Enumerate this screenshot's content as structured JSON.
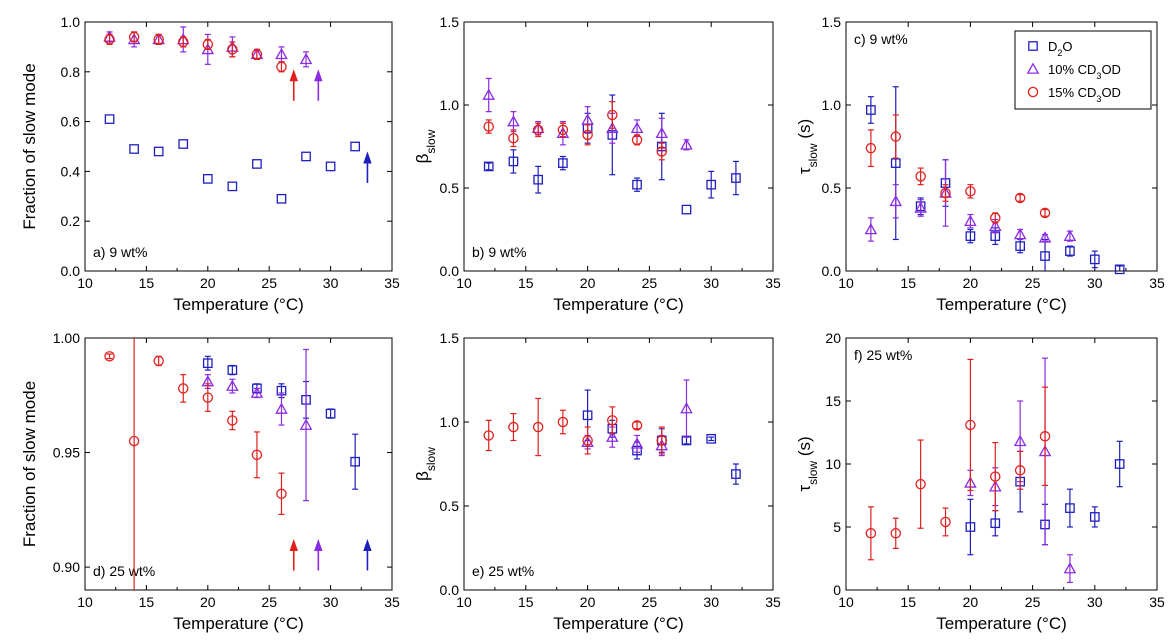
{
  "colors": {
    "D2O": "#1f1fbf",
    "CD3OD_10": "#8b2be2",
    "CD3OD_15": "#e0201d",
    "axis": "#000000"
  },
  "legend": {
    "panel": "c",
    "entries": [
      {
        "key": "D2O",
        "text": "D",
        "sub": "2",
        "tail": "O",
        "marker": "square"
      },
      {
        "key": "CD3OD_10",
        "text": "10% CD",
        "sub": "3",
        "tail": "OD",
        "marker": "triangle"
      },
      {
        "key": "CD3OD_15",
        "text": "15% CD",
        "sub": "3",
        "tail": "OD",
        "marker": "circle"
      }
    ]
  },
  "chart_data": [
    {
      "id": "a",
      "type": "scatter",
      "label": "a) 9 wt%",
      "label_pos": "bottom-left",
      "xlabel": "Temperature (°C)",
      "ylabel": "Fraction of slow mode",
      "xlim": [
        10,
        35
      ],
      "ylim": [
        0.0,
        1.0
      ],
      "xticks": [
        "10",
        "15",
        "20",
        "25",
        "30",
        "35"
      ],
      "yticks": [
        "0.0",
        "0.2",
        "0.4",
        "0.6",
        "0.8",
        "1.0"
      ],
      "series": [
        {
          "key": "D2O",
          "marker": "square",
          "x": [
            12,
            14,
            16,
            18,
            20,
            22,
            24,
            26,
            28,
            30,
            32
          ],
          "y": [
            0.61,
            0.49,
            0.48,
            0.51,
            0.37,
            0.34,
            0.43,
            0.29,
            0.46,
            0.42,
            0.5
          ],
          "err": [
            0,
            0,
            0,
            0,
            0,
            0,
            0,
            0,
            0,
            0,
            0
          ]
        },
        {
          "key": "CD3OD_10",
          "marker": "triangle",
          "x": [
            12,
            14,
            16,
            18,
            20,
            22,
            24,
            26,
            28
          ],
          "y": [
            0.94,
            0.93,
            0.93,
            0.93,
            0.89,
            0.9,
            0.87,
            0.87,
            0.85
          ],
          "err": [
            0.02,
            0.03,
            0.02,
            0.05,
            0.06,
            0.04,
            0.02,
            0.03,
            0.03
          ]
        },
        {
          "key": "CD3OD_15",
          "marker": "circle",
          "x": [
            12,
            14,
            16,
            18,
            20,
            22,
            24,
            26
          ],
          "y": [
            0.93,
            0.94,
            0.93,
            0.92,
            0.91,
            0.89,
            0.87,
            0.82
          ],
          "err": [
            0.02,
            0.02,
            0.02,
            0.02,
            0.02,
            0.03,
            0.02,
            0.02
          ]
        }
      ],
      "arrows": [
        {
          "key": "CD3OD_15",
          "x": 27,
          "y": 0.78
        },
        {
          "key": "CD3OD_10",
          "x": 29,
          "y": 0.78
        },
        {
          "key": "D2O",
          "x": 33,
          "y": 0.45
        }
      ]
    },
    {
      "id": "b",
      "type": "scatter",
      "label": "b) 9 wt%",
      "label_pos": "bottom-left",
      "xlabel": "Temperature (°C)",
      "ylabel": "β",
      "ylabel_sub": "slow",
      "xlim": [
        10,
        35
      ],
      "ylim": [
        0.0,
        1.5
      ],
      "xticks": [
        "10",
        "15",
        "20",
        "25",
        "30",
        "35"
      ],
      "yticks": [
        "0.0",
        "0.5",
        "1.0",
        "1.5"
      ],
      "series": [
        {
          "key": "D2O",
          "marker": "square",
          "x": [
            12,
            14,
            16,
            18,
            20,
            22,
            24,
            26,
            28,
            30,
            32
          ],
          "y": [
            0.63,
            0.66,
            0.55,
            0.65,
            0.86,
            0.82,
            0.52,
            0.75,
            0.37,
            0.52,
            0.56
          ],
          "err": [
            0.02,
            0.07,
            0.08,
            0.04,
            0.09,
            0.24,
            0.04,
            0.2,
            0.0,
            0.08,
            0.1
          ]
        },
        {
          "key": "CD3OD_10",
          "marker": "triangle",
          "x": [
            12,
            14,
            16,
            18,
            20,
            22,
            24,
            26,
            28
          ],
          "y": [
            1.06,
            0.9,
            0.86,
            0.83,
            0.91,
            0.86,
            0.86,
            0.83,
            0.76
          ],
          "err": [
            0.1,
            0.06,
            0.04,
            0.07,
            0.08,
            0.09,
            0.05,
            0.09,
            0.03
          ]
        },
        {
          "key": "CD3OD_15",
          "marker": "circle",
          "x": [
            12,
            14,
            16,
            18,
            20,
            22,
            24,
            26
          ],
          "y": [
            0.87,
            0.8,
            0.85,
            0.85,
            0.82,
            0.94,
            0.79,
            0.72
          ],
          "err": [
            0.04,
            0.05,
            0.04,
            0.04,
            0.06,
            0.08,
            0.03,
            0.05
          ]
        }
      ],
      "arrows": []
    },
    {
      "id": "c",
      "type": "scatter",
      "label": "c) 9 wt%",
      "label_pos": "top-left",
      "xlabel": "Temperature (°C)",
      "ylabel": "τ",
      "ylabel_sub": "slow",
      "ylabel_tail": " (s)",
      "xlim": [
        10,
        35
      ],
      "ylim": [
        0.0,
        1.5
      ],
      "xticks": [
        "10",
        "15",
        "20",
        "25",
        "30",
        "35"
      ],
      "yticks": [
        "0.0",
        "0.5",
        "1.0",
        "1.5"
      ],
      "series": [
        {
          "key": "D2O",
          "marker": "square",
          "x": [
            12,
            14,
            16,
            18,
            20,
            22,
            24,
            26,
            28,
            30,
            32
          ],
          "y": [
            0.97,
            0.65,
            0.39,
            0.53,
            0.21,
            0.21,
            0.15,
            0.09,
            0.12,
            0.07,
            0.01
          ],
          "err": [
            0.08,
            0.46,
            0.05,
            0.14,
            0.04,
            0.05,
            0.04,
            0.1,
            0.03,
            0.05,
            0.02
          ]
        },
        {
          "key": "CD3OD_10",
          "marker": "triangle",
          "x": [
            12,
            14,
            16,
            18,
            20,
            22,
            24,
            26,
            28
          ],
          "y": [
            0.25,
            0.42,
            0.38,
            0.47,
            0.3,
            0.27,
            0.22,
            0.2,
            0.21
          ],
          "err": [
            0.07,
            0.1,
            0.05,
            0.2,
            0.04,
            0.04,
            0.03,
            0.02,
            0.03
          ]
        },
        {
          "key": "CD3OD_15",
          "marker": "circle",
          "x": [
            12,
            14,
            16,
            18,
            20,
            22,
            24,
            26
          ],
          "y": [
            0.74,
            0.81,
            0.57,
            0.47,
            0.48,
            0.32,
            0.44,
            0.35
          ],
          "err": [
            0.11,
            0.13,
            0.05,
            0.05,
            0.04,
            0.03,
            0.02,
            0.02
          ]
        }
      ],
      "arrows": []
    },
    {
      "id": "d",
      "type": "scatter",
      "label": "d) 25 wt%",
      "label_pos": "bottom-left",
      "xlabel": "Temperature (°C)",
      "ylabel": "Fraction of slow mode",
      "xlim": [
        10,
        35
      ],
      "ylim": [
        0.89,
        1.0
      ],
      "xticks": [
        "10",
        "15",
        "20",
        "25",
        "30",
        "35"
      ],
      "yticks": [
        "0.90",
        "0.95",
        "1.00"
      ],
      "series": [
        {
          "key": "D2O",
          "marker": "square",
          "x": [
            20,
            22,
            24,
            26,
            28,
            30,
            32
          ],
          "y": [
            0.989,
            0.986,
            0.978,
            0.977,
            0.973,
            0.967,
            0.946
          ],
          "err": [
            0.003,
            0.002,
            0.002,
            0.003,
            0.008,
            0.002,
            0.012
          ]
        },
        {
          "key": "CD3OD_10",
          "marker": "triangle",
          "x": [
            20,
            22,
            24,
            26,
            28
          ],
          "y": [
            0.981,
            0.979,
            0.976,
            0.969,
            0.962
          ],
          "err": [
            0.003,
            0.003,
            0.002,
            0.007,
            0.033
          ]
        },
        {
          "key": "CD3OD_15",
          "marker": "circle",
          "x": [
            12,
            14,
            16,
            18,
            20,
            22,
            24,
            26
          ],
          "y": [
            0.992,
            0.955,
            0.99,
            0.978,
            0.974,
            0.964,
            0.949,
            0.932
          ],
          "err": [
            0.001,
            0.065,
            0.002,
            0.006,
            0.006,
            0.004,
            0.01,
            0.009
          ]
        }
      ],
      "arrows": [
        {
          "key": "CD3OD_15",
          "x": 27,
          "y": 0.909
        },
        {
          "key": "CD3OD_10",
          "x": 29,
          "y": 0.909
        },
        {
          "key": "D2O",
          "x": 33,
          "y": 0.909
        }
      ]
    },
    {
      "id": "e",
      "type": "scatter",
      "label": "e) 25 wt%",
      "label_pos": "bottom-left",
      "xlabel": "Temperature (°C)",
      "ylabel": "β",
      "ylabel_sub": "slow",
      "xlim": [
        10,
        35
      ],
      "ylim": [
        0.0,
        1.5
      ],
      "xticks": [
        "10",
        "15",
        "20",
        "25",
        "30",
        "35"
      ],
      "yticks": [
        "0.0",
        "0.5",
        "1.0",
        "1.5"
      ],
      "series": [
        {
          "key": "D2O",
          "marker": "square",
          "x": [
            20,
            22,
            24,
            26,
            28,
            30,
            32
          ],
          "y": [
            1.04,
            0.96,
            0.83,
            0.89,
            0.89,
            0.9,
            0.69
          ],
          "err": [
            0.15,
            0.05,
            0.05,
            0.07,
            0.02,
            0.01,
            0.06
          ]
        },
        {
          "key": "CD3OD_10",
          "marker": "triangle",
          "x": [
            20,
            22,
            24,
            26,
            28
          ],
          "y": [
            0.88,
            0.91,
            0.87,
            0.86,
            1.08
          ],
          "err": [
            0.04,
            0.06,
            0.05,
            0.06,
            0.17
          ]
        },
        {
          "key": "CD3OD_15",
          "marker": "circle",
          "x": [
            12,
            14,
            16,
            18,
            20,
            22,
            24,
            26
          ],
          "y": [
            0.92,
            0.97,
            0.97,
            1.0,
            0.89,
            1.01,
            0.98,
            0.89
          ],
          "err": [
            0.09,
            0.08,
            0.17,
            0.07,
            0.08,
            0.08,
            0.02,
            0.08
          ]
        }
      ],
      "arrows": []
    },
    {
      "id": "f",
      "type": "scatter",
      "label": "f) 25 wt%",
      "label_pos": "top-left",
      "xlabel": "Temperature (°C)",
      "ylabel": "τ",
      "ylabel_sub": "slow",
      "ylabel_tail": " (s)",
      "xlim": [
        10,
        35
      ],
      "ylim": [
        0,
        20
      ],
      "xticks": [
        "10",
        "15",
        "20",
        "25",
        "30",
        "35"
      ],
      "yticks": [
        "0",
        "5",
        "10",
        "15",
        "20"
      ],
      "series": [
        {
          "key": "D2O",
          "marker": "square",
          "x": [
            20,
            22,
            24,
            26,
            28,
            30,
            32
          ],
          "y": [
            5.0,
            5.3,
            8.6,
            5.2,
            6.5,
            5.8,
            10.0
          ],
          "err": [
            2.2,
            1.0,
            2.4,
            1.6,
            1.5,
            0.8,
            1.8
          ]
        },
        {
          "key": "CD3OD_10",
          "marker": "triangle",
          "x": [
            20,
            22,
            24,
            26,
            28
          ],
          "y": [
            8.5,
            8.2,
            11.8,
            11.0,
            1.7
          ],
          "err": [
            1.0,
            1.5,
            3.2,
            7.4,
            1.1
          ]
        },
        {
          "key": "CD3OD_15",
          "marker": "circle",
          "x": [
            12,
            14,
            16,
            18,
            20,
            22,
            24,
            26
          ],
          "y": [
            4.5,
            4.5,
            8.4,
            5.4,
            13.1,
            9.0,
            9.5,
            12.2
          ],
          "err": [
            2.1,
            1.2,
            3.5,
            1.1,
            5.2,
            2.7,
            1.5,
            3.9
          ]
        }
      ],
      "arrows": []
    }
  ]
}
